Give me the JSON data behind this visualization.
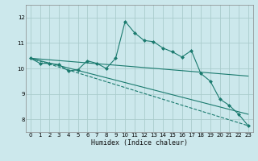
{
  "title": "",
  "xlabel": "Humidex (Indice chaleur)",
  "ylabel": "",
  "bg_color": "#cce8ec",
  "grid_color": "#aacccc",
  "line_color": "#1a7a6e",
  "xlim": [
    -0.5,
    23.5
  ],
  "ylim": [
    7.5,
    12.5
  ],
  "yticks": [
    8,
    9,
    10,
    11,
    12
  ],
  "xticks": [
    0,
    1,
    2,
    3,
    4,
    5,
    6,
    7,
    8,
    9,
    10,
    11,
    12,
    13,
    14,
    15,
    16,
    17,
    18,
    19,
    20,
    21,
    22,
    23
  ],
  "lines": [
    {
      "x": [
        0,
        1,
        2,
        3,
        4,
        5,
        6,
        7,
        8,
        9,
        10,
        11,
        12,
        13,
        14,
        15,
        16,
        17,
        18,
        19,
        20,
        21,
        22,
        23
      ],
      "y": [
        10.4,
        10.2,
        10.2,
        10.15,
        9.9,
        9.95,
        10.3,
        10.2,
        10.0,
        10.4,
        11.85,
        11.4,
        11.1,
        11.05,
        10.8,
        10.65,
        10.45,
        10.7,
        9.8,
        9.5,
        8.8,
        8.55,
        8.2,
        7.75
      ],
      "linestyle": "-",
      "marker": "D",
      "markersize": 2.0
    },
    {
      "x": [
        0,
        23
      ],
      "y": [
        10.4,
        9.7
      ],
      "linestyle": "-",
      "marker": null,
      "markersize": 0
    },
    {
      "x": [
        0,
        23
      ],
      "y": [
        10.4,
        7.75
      ],
      "linestyle": "--",
      "marker": null,
      "markersize": 0
    },
    {
      "x": [
        0,
        23
      ],
      "y": [
        10.4,
        8.2
      ],
      "linestyle": "-",
      "marker": null,
      "markersize": 0
    }
  ]
}
